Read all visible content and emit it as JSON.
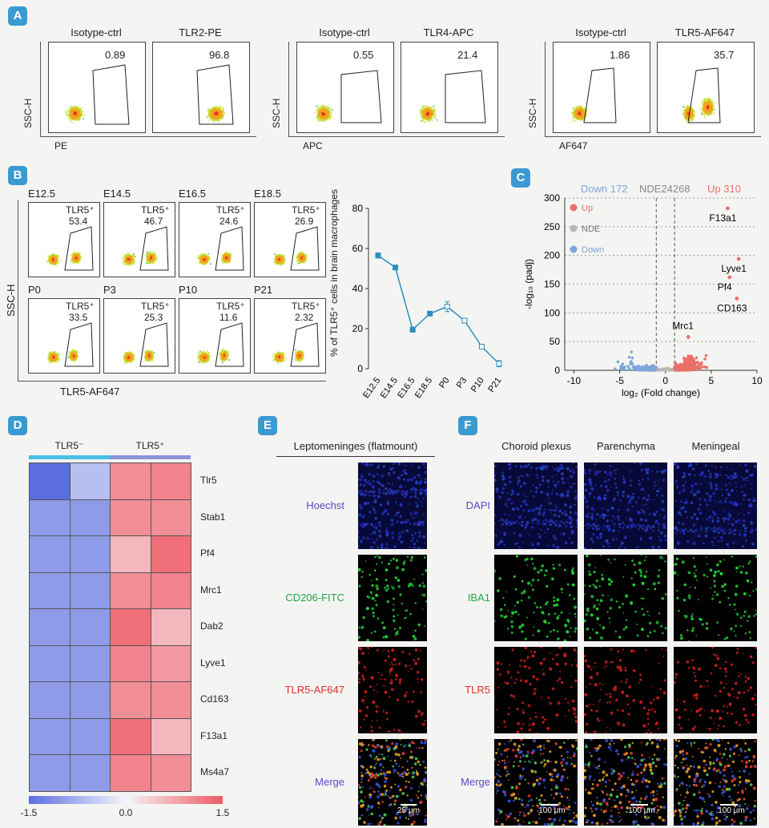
{
  "panel_letters": {
    "a": "A",
    "b": "B",
    "c": "C",
    "d": "D",
    "e": "E",
    "f": "F"
  },
  "panelA": {
    "ylabel": "SSC-H",
    "groups": [
      {
        "xlabel": "PE",
        "plots": [
          {
            "title": "Isotype-ctrl",
            "value": "0.89"
          },
          {
            "title": "TLR2-PE",
            "value": "96.8"
          }
        ]
      },
      {
        "xlabel": "APC",
        "plots": [
          {
            "title": "Isotype-ctrl",
            "value": "0.55"
          },
          {
            "title": "TLR4-APC",
            "value": "21.4"
          }
        ]
      },
      {
        "xlabel": "AF647",
        "plots": [
          {
            "title": "Isotype-ctrl",
            "value": "1.86"
          },
          {
            "title": "TLR5-AF647",
            "value": "35.7"
          }
        ]
      }
    ]
  },
  "panelB": {
    "ylabel": "SSC-H",
    "xlabel": "TLR5-AF647",
    "gate_label": "TLR5⁺",
    "plots": [
      {
        "title": "E12.5",
        "value": "53.4"
      },
      {
        "title": "E14.5",
        "value": "46.7"
      },
      {
        "title": "E16.5",
        "value": "24.6"
      },
      {
        "title": "E18.5",
        "value": "26.9"
      },
      {
        "title": "P0",
        "value": "33.5"
      },
      {
        "title": "P3",
        "value": "25.3"
      },
      {
        "title": "P10",
        "value": "11.6"
      },
      {
        "title": "P21",
        "value": "2.32"
      }
    ],
    "line_chart": {
      "ylabel": "% of TLR5⁺ cells in brain macrophages",
      "yticks": [
        "0",
        "20",
        "40",
        "60",
        "80"
      ]
    }
  },
  "chart_data": [
    {
      "type": "line",
      "categories": [
        "E12.5",
        "E14.5",
        "E16.5",
        "E18.5",
        "P0",
        "P3",
        "P10",
        "P21"
      ],
      "series": [
        {
          "values": [
            56.5,
            50.5,
            19.5,
            27.5,
            31,
            24,
            11,
            2.5
          ],
          "errors": [
            1.2,
            1.0,
            1.2,
            0.8,
            2.5,
            0.8,
            0.8,
            1.5
          ]
        }
      ],
      "ylabel": "% of TLR5⁺ cells in brain macrophages",
      "ylim": [
        0,
        80
      ],
      "color": "#2a8ec0"
    },
    {
      "type": "scatter",
      "title_parts": {
        "down": "Down 172",
        "nde": "NDE24268",
        "up": "Up 310"
      },
      "xlabel": "log₂ (Fold change)",
      "ylabel": "-log₁₀ (padj)",
      "xlim": [
        -11,
        10
      ],
      "ylim": [
        0,
        300
      ],
      "xticks": [
        "-10",
        "-5",
        "0",
        "5",
        "10"
      ],
      "yticks": [
        "0",
        "50",
        "100",
        "150",
        "200",
        "250",
        "300"
      ],
      "legend": [
        {
          "name": "Up",
          "color": "#e8706a"
        },
        {
          "name": "NDE",
          "color": "#b8b8b8"
        },
        {
          "name": "Down",
          "color": "#7fa6d8"
        }
      ],
      "labeled_points": [
        {
          "label": "F13a1",
          "x": 6.8,
          "y": 282
        },
        {
          "label": "Lyve1",
          "x": 8.0,
          "y": 194
        },
        {
          "label": "Pf4",
          "x": 7.0,
          "y": 162
        },
        {
          "label": "CD163",
          "x": 7.8,
          "y": 125
        },
        {
          "label": "Mrc1",
          "x": 2.5,
          "y": 58
        }
      ]
    },
    {
      "type": "heatmap",
      "groups": [
        "TLR5⁻",
        "TLR5⁺"
      ],
      "genes": [
        "Tlr5",
        "Stab1",
        "Pf4",
        "Mrc1",
        "Dab2",
        "Lyve1",
        "Cd163",
        "F13a1",
        "Ms4a7"
      ],
      "values": [
        [
          -1.5,
          -0.6,
          1.0,
          1.1
        ],
        [
          -1.0,
          -1.0,
          1.0,
          1.0
        ],
        [
          -1.0,
          -1.0,
          0.6,
          1.3
        ],
        [
          -1.0,
          -1.0,
          1.0,
          1.1
        ],
        [
          -1.0,
          -1.0,
          1.3,
          0.6
        ],
        [
          -1.0,
          -1.0,
          1.1,
          0.9
        ],
        [
          -1.0,
          -1.0,
          1.0,
          1.0
        ],
        [
          -1.0,
          -1.0,
          1.3,
          0.6
        ],
        [
          -1.0,
          -1.0,
          1.1,
          1.0
        ]
      ],
      "colorbar": [
        "-1.5",
        "0.0",
        "1.5"
      ]
    }
  ],
  "panelE": {
    "title": "Leptomeninges (flatmount)",
    "rows": [
      "Hoechst",
      "CD206-FITC",
      "TLR5-AF647",
      "Merge"
    ],
    "scalebar": "25 μm"
  },
  "panelF": {
    "columns": [
      "Choroid plexus",
      "Parenchyma",
      "Meningeal"
    ],
    "rows": [
      "DAPI",
      "IBA1",
      "TLR5",
      "Merge"
    ],
    "scalebar": "100 μm"
  },
  "colors": {
    "accent": "#3a9ad1",
    "hm_low": "#5b6ee1",
    "hm_high": "#ef5a64",
    "up": "#e8706a",
    "down": "#7fa6d8",
    "nde": "#b8b8b8"
  }
}
